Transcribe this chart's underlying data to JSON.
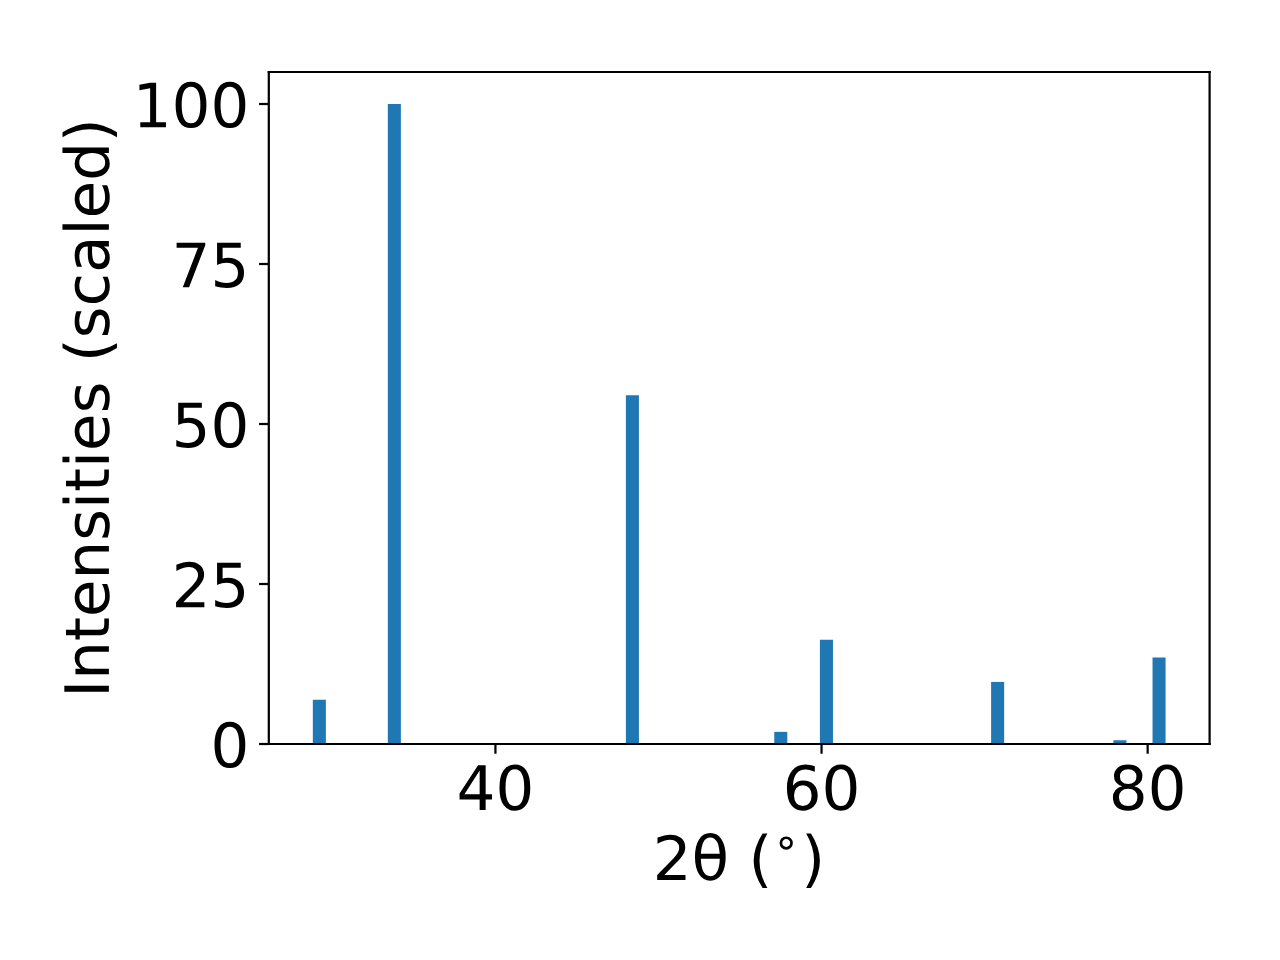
{
  "chart_data": {
    "type": "bar",
    "xlabel": "2θ ($^{∘}$)",
    "ylabel": "Intensities (scaled)",
    "x": [
      29.2,
      33.8,
      48.4,
      57.5,
      60.3,
      70.8,
      78.3,
      80.7
    ],
    "values": [
      6.9,
      100,
      54.5,
      1.9,
      16.3,
      9.7,
      0.6,
      13.5
    ],
    "color": "#1f77b4",
    "xlim": [
      26.1,
      83.8
    ],
    "xticks": [
      40,
      60,
      80
    ],
    "ylim": [
      0,
      105
    ],
    "yticks": [
      0,
      25,
      50,
      75,
      100
    ],
    "grid": false
  }
}
